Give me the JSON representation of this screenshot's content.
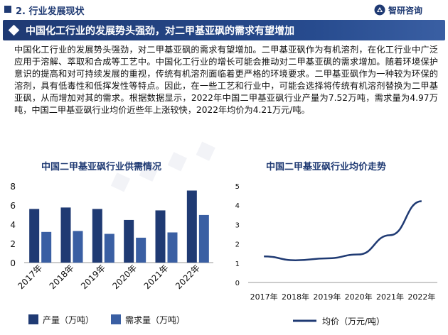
{
  "header": {
    "section_label": "2. 行业发展现状",
    "brand_name": "智研咨询",
    "title": "中国化工行业的发展势头强劲，对二甲基亚砜的需求有望增加"
  },
  "paragraph": "中国化工行业的发展势头强劲，对二甲基亚砜的需求有望增加。二甲基亚砜作为有机溶剂，在化工行业中广泛应用于溶解、萃取和合成等工艺中。中国化工行业的增长可能会推动对二甲基亚砜的需求增加。随着环境保护意识的提高和对可持续发展的重视，传统有机溶剂面临着更严格的环境要求。二甲基亚砜作为一种较为环保的溶剂，具有低毒性和低挥发性等特点。因此，在一些工艺和行业中，可能会选择将传统有机溶剂替换为二甲基亚砜，从而增加对其的需求。根据数据显示，2022年中国二甲基亚砜行业产量为7.52万吨，需求量为4.97万吨，中国二甲基亚砜行业均价近些年上涨较快，2022年均价为4.21万元/吨。",
  "colors": {
    "primary": "#1f3a73",
    "secondary": "#3a5fa3"
  },
  "chart_data": [
    {
      "type": "bar",
      "title": "中国二甲基亚砜行业供需情况",
      "categories": [
        "2017年",
        "2018年",
        "2019年",
        "2020年",
        "2021年",
        "2022年"
      ],
      "series": [
        {
          "name": "产量（万吨）",
          "values": [
            5.6,
            5.75,
            5.6,
            4.45,
            5.45,
            7.52
          ],
          "color": "#1f3a73"
        },
        {
          "name": "需求量（万吨）",
          "values": [
            3.2,
            3.3,
            3.0,
            2.6,
            3.15,
            4.97
          ],
          "color": "#3a5fa3"
        }
      ],
      "ylim": [
        0,
        8
      ],
      "yticks": [
        "0",
        "2",
        "4",
        "6",
        "8"
      ],
      "legend": "bottom"
    },
    {
      "type": "line",
      "title": "中国二甲基亚砜行业均价走势",
      "categories": [
        "2017年",
        "2018年",
        "2019年",
        "2020年",
        "2021年",
        "2022年"
      ],
      "series": [
        {
          "name": "均价（万元/吨）",
          "values": [
            1.35,
            1.15,
            1.25,
            1.45,
            2.45,
            4.21
          ],
          "color": "#1f3a73"
        }
      ],
      "ylim": [
        0,
        5
      ],
      "yticks": [
        "0",
        "1",
        "2",
        "3",
        "4",
        "5"
      ],
      "legend": "bottom"
    }
  ]
}
